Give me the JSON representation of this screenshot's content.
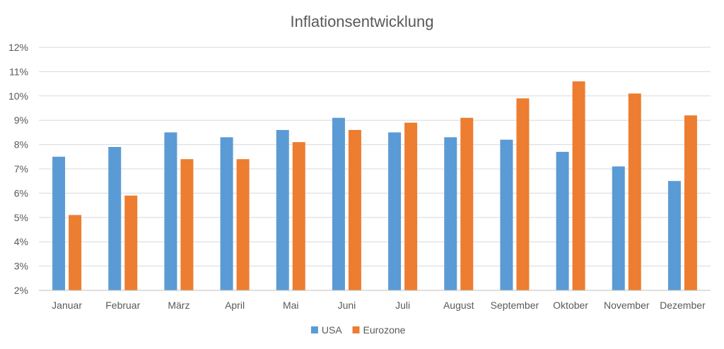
{
  "chart_data": {
    "type": "bar",
    "title": "Inflationsentwicklung",
    "categories": [
      "Januar",
      "Februar",
      "März",
      "April",
      "Mai",
      "Juni",
      "Juli",
      "August",
      "September",
      "Oktober",
      "November",
      "Dezember"
    ],
    "series": [
      {
        "name": "USA",
        "color": "#5b9bd5",
        "values": [
          7.5,
          7.9,
          8.5,
          8.3,
          8.6,
          9.1,
          8.5,
          8.3,
          8.2,
          7.7,
          7.1,
          6.5
        ]
      },
      {
        "name": "Eurozone",
        "color": "#ed7d31",
        "values": [
          5.1,
          5.9,
          7.4,
          7.4,
          8.1,
          8.6,
          8.9,
          9.1,
          9.9,
          10.6,
          10.1,
          9.2
        ]
      }
    ],
    "ylim": [
      2,
      12
    ],
    "yticks": [
      "2%",
      "3%",
      "4%",
      "5%",
      "6%",
      "7%",
      "8%",
      "9%",
      "10%",
      "11%",
      "12%"
    ],
    "grid": true,
    "legend": "bottom"
  }
}
